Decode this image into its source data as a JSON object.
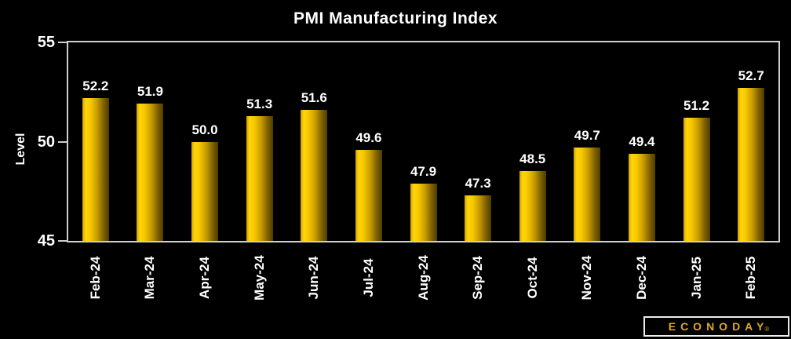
{
  "title": "PMI Manufacturing Index",
  "y_axis": {
    "label": "Level"
  },
  "logo": {
    "text": "ECONODAY",
    "reg_mark": "®"
  },
  "colors": {
    "background": "#000000",
    "text": "#ffffff",
    "frame": "#cfcfcf",
    "bar_gradient": [
      "#d19e00",
      "#ffd60a",
      "#f7c800",
      "#c79c00",
      "#7d6000",
      "#4e3c00"
    ],
    "logo_gold": "#dfa921"
  },
  "chart_data": {
    "type": "bar",
    "title": "PMI Manufacturing Index",
    "categories": [
      "Feb-24",
      "Mar-24",
      "Apr-24",
      "May-24",
      "Jun-24",
      "Jul-24",
      "Aug-24",
      "Sep-24",
      "Oct-24",
      "Nov-24",
      "Dec-24",
      "Jan-25",
      "Feb-25"
    ],
    "values": [
      52.2,
      51.9,
      50.0,
      51.3,
      51.6,
      49.6,
      47.9,
      47.3,
      48.5,
      49.7,
      49.4,
      51.2,
      52.7
    ],
    "value_labels": [
      "52.2",
      "51.9",
      "50.0",
      "51.3",
      "51.6",
      "49.6",
      "47.9",
      "47.3",
      "48.5",
      "49.7",
      "49.4",
      "51.2",
      "52.7"
    ],
    "xlabel": "",
    "ylabel": "Level",
    "ylim": [
      45,
      55
    ],
    "yticks": [
      45,
      50,
      55
    ],
    "grid": false,
    "legend": false,
    "bar_color": "gold-gradient",
    "data_labels": true,
    "x_tick_rotation": 90
  }
}
